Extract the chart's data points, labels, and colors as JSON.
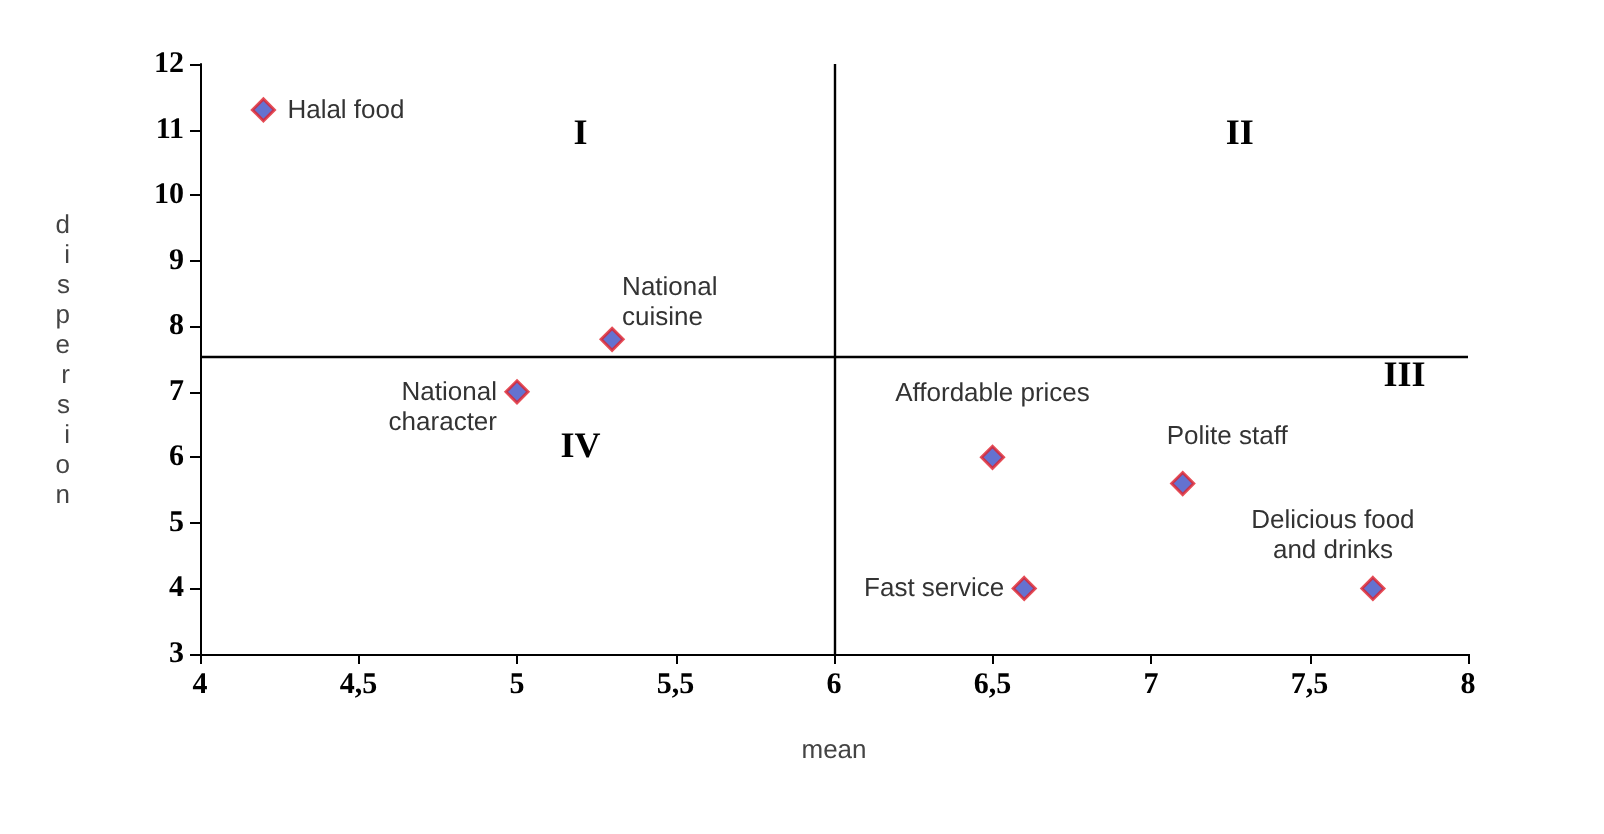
{
  "chart_data": {
    "type": "scatter",
    "xlabel": "mean",
    "ylabel": "dispersion",
    "x": [
      4.2,
      5.3,
      5.0,
      6.5,
      7.1,
      6.6,
      7.7
    ],
    "values": [
      11.3,
      7.8,
      7.0,
      6.0,
      5.6,
      4.0,
      4.0
    ],
    "color": "#3d4fc4",
    "marker": "diamond",
    "grid": false,
    "xlim": [
      4,
      8
    ],
    "xticks": [
      4,
      {
        "value": 4.5,
        "label": "4,5"
      },
      5,
      {
        "value": 5.5,
        "label": "5,5"
      },
      6,
      {
        "value": 6.5,
        "label": "6,5"
      },
      7,
      {
        "value": 7.5,
        "label": "7,5"
      },
      8
    ],
    "ylim": [
      3,
      12
    ],
    "yticks": [
      3,
      4,
      5,
      6,
      7,
      8,
      9,
      10,
      11,
      12
    ],
    "ref_lines": [
      {
        "axis": "x",
        "value": 6,
        "color": "#000000"
      },
      {
        "axis": "y",
        "value": 7.55,
        "color": "#000000"
      }
    ],
    "annotations": [
      {
        "text": "Halal food",
        "x": 4.2,
        "y": 11.3
      },
      {
        "text": "National\ncuisine",
        "x": 5.3,
        "y": 7.8
      },
      {
        "text": "National\ncharacter",
        "x": 5.0,
        "y": 7.0
      },
      {
        "text": "Affordable prices",
        "x": 6.5,
        "y": 6.0
      },
      {
        "text": "Polite staff",
        "x": 7.1,
        "y": 5.6
      },
      {
        "text": "Fast service",
        "x": 6.6,
        "y": 4.0
      },
      {
        "text": "Delicious food\nand drinks",
        "x": 7.7,
        "y": 4.0
      },
      "I",
      "II",
      "III",
      "IV"
    ]
  }
}
